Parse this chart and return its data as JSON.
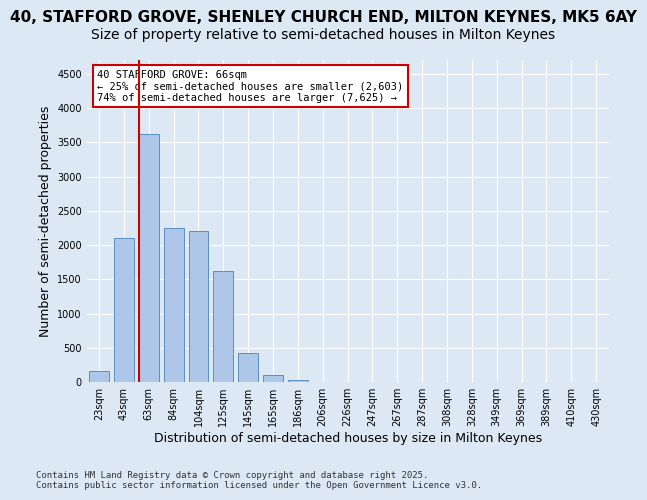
{
  "title_line1": "40, STAFFORD GROVE, SHENLEY CHURCH END, MILTON KEYNES, MK5 6AY",
  "title_line2": "Size of property relative to semi-detached houses in Milton Keynes",
  "xlabel": "Distribution of semi-detached houses by size in Milton Keynes",
  "ylabel": "Number of semi-detached properties",
  "footer": "Contains HM Land Registry data © Crown copyright and database right 2025.\nContains public sector information licensed under the Open Government Licence v3.0.",
  "bin_labels": [
    "23sqm",
    "43sqm",
    "63sqm",
    "84sqm",
    "104sqm",
    "125sqm",
    "145sqm",
    "165sqm",
    "186sqm",
    "206sqm",
    "226sqm",
    "247sqm",
    "267sqm",
    "287sqm",
    "308sqm",
    "328sqm",
    "349sqm",
    "369sqm",
    "389sqm",
    "410sqm",
    "430sqm"
  ],
  "bar_values": [
    170,
    2100,
    3620,
    2250,
    2200,
    1620,
    430,
    100,
    30,
    0,
    0,
    0,
    0,
    0,
    0,
    0,
    0,
    0,
    0,
    0,
    0
  ],
  "bar_color": "#aec6e8",
  "bar_edge_color": "#5a8fc0",
  "annotation_title": "40 STAFFORD GROVE: 66sqm",
  "annotation_line2": "← 25% of semi-detached houses are smaller (2,603)",
  "annotation_line3": "74% of semi-detached houses are larger (7,625) →",
  "annotation_box_color": "#ffffff",
  "annotation_box_edge": "#cc0000",
  "vline_color": "#cc0000",
  "vline_x": 1.6,
  "ylim": [
    0,
    4700
  ],
  "yticks": [
    0,
    500,
    1000,
    1500,
    2000,
    2500,
    3000,
    3500,
    4000,
    4500
  ],
  "bg_color": "#dce9f5",
  "plot_bg_color": "#dce9f5",
  "grid_color": "#ffffff",
  "title_fontsize": 11,
  "subtitle_fontsize": 10,
  "tick_fontsize": 7,
  "ylabel_fontsize": 9,
  "xlabel_fontsize": 9
}
